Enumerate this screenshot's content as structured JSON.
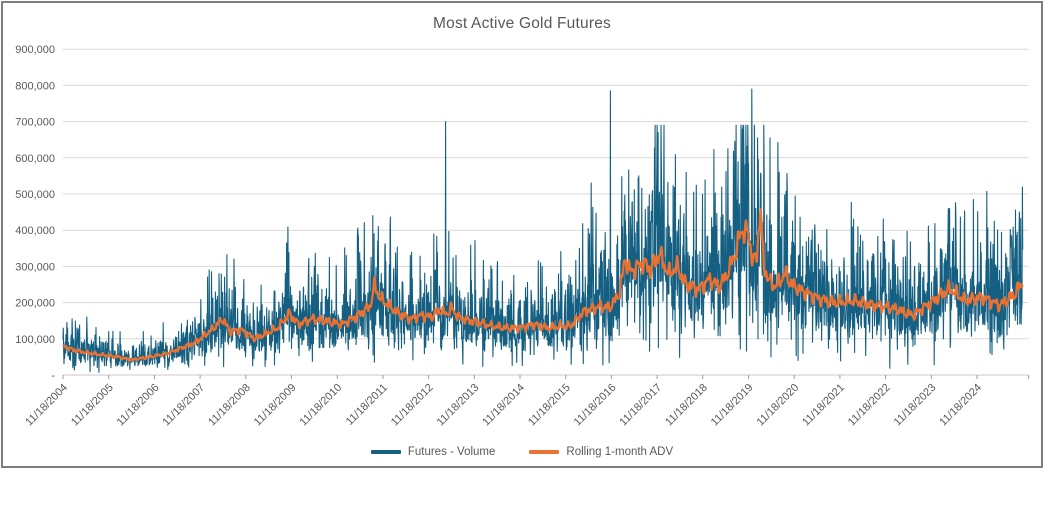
{
  "chart_data": {
    "type": "line",
    "title": "Most Active Gold Futures",
    "y_axis": {
      "min": 0,
      "max": 900000,
      "step": 100000,
      "tick_labels": [
        "900,000",
        "800,000",
        "700,000",
        "600,000",
        "500,000",
        "400,000",
        "300,000",
        "200,000",
        "100,000",
        "-"
      ],
      "grid": true
    },
    "x_axis": {
      "tick_labels": [
        "11/18/2004",
        "11/18/2005",
        "11/18/2006",
        "11/18/2007",
        "11/18/2008",
        "11/18/2009",
        "11/18/2010",
        "11/18/2011",
        "11/18/2012",
        "11/18/2013",
        "11/18/2014",
        "11/18/2015",
        "11/18/2016",
        "11/18/2017",
        "11/18/2018",
        "11/18/2019",
        "11/18/2020",
        "11/18/2021",
        "11/18/2022",
        "11/18/2023",
        "11/18/2024"
      ],
      "years_span": 21.0,
      "label_rotation_deg": -45
    },
    "legend": [
      {
        "name": "Futures - Volume",
        "color": "#156082"
      },
      {
        "name": "Rolling 1-month ADV",
        "color": "#E97132"
      }
    ],
    "series": [
      {
        "name": "Futures - Volume",
        "color": "#156082",
        "description": "daily traded volume, noisy band around the rolling ADV",
        "spikes_t_value": [
          [
            0.1,
            130000
          ],
          [
            1.0,
            120000
          ],
          [
            3.2,
            290000
          ],
          [
            3.74,
            320000
          ],
          [
            4.9,
            365000
          ],
          [
            5.5,
            300000
          ],
          [
            6.2,
            330000
          ],
          [
            6.78,
            440000
          ],
          [
            6.9,
            410000
          ],
          [
            7.6,
            330000
          ],
          [
            8.37,
            700000
          ],
          [
            8.6,
            330000
          ],
          [
            9.5,
            295000
          ],
          [
            10.45,
            310000
          ],
          [
            11.3,
            350000
          ],
          [
            11.56,
            530000
          ],
          [
            11.98,
            785000
          ],
          [
            12.6,
            550000
          ],
          [
            13.05,
            505000
          ],
          [
            13.8,
            505000
          ],
          [
            14.55,
            625000
          ],
          [
            14.7,
            645000
          ],
          [
            14.9,
            600000
          ],
          [
            15.07,
            790000
          ],
          [
            15.2,
            655000
          ],
          [
            15.67,
            560000
          ],
          [
            16.45,
            415000
          ],
          [
            17.3,
            430000
          ],
          [
            17.5,
            370000
          ],
          [
            18.15,
            310000
          ],
          [
            19.37,
            460000
          ],
          [
            20.38,
            425000
          ],
          [
            20.93,
            450000
          ]
        ]
      },
      {
        "name": "Rolling 1-month ADV",
        "color": "#E97132",
        "anchors_t_value": [
          [
            0,
            80000
          ],
          [
            0.25,
            68000
          ],
          [
            0.6,
            60000
          ],
          [
            0.9,
            55000
          ],
          [
            1.2,
            50000
          ],
          [
            1.5,
            42000
          ],
          [
            1.9,
            50000
          ],
          [
            2.3,
            60000
          ],
          [
            2.6,
            75000
          ],
          [
            2.9,
            90000
          ],
          [
            3.1,
            110000
          ],
          [
            3.3,
            130000
          ],
          [
            3.5,
            155000
          ],
          [
            3.65,
            120000
          ],
          [
            3.9,
            125000
          ],
          [
            4.2,
            100000
          ],
          [
            4.45,
            115000
          ],
          [
            4.7,
            130000
          ],
          [
            4.95,
            170000
          ],
          [
            5.15,
            140000
          ],
          [
            5.45,
            155000
          ],
          [
            5.7,
            150000
          ],
          [
            6.1,
            140000
          ],
          [
            6.4,
            160000
          ],
          [
            6.72,
            190000
          ],
          [
            6.82,
            250000
          ],
          [
            6.92,
            215000
          ],
          [
            7.1,
            195000
          ],
          [
            7.35,
            170000
          ],
          [
            7.6,
            155000
          ],
          [
            7.85,
            165000
          ],
          [
            8.05,
            160000
          ],
          [
            8.25,
            180000
          ],
          [
            8.38,
            168000
          ],
          [
            8.5,
            185000
          ],
          [
            8.65,
            160000
          ],
          [
            8.9,
            150000
          ],
          [
            9.1,
            145000
          ],
          [
            9.4,
            135000
          ],
          [
            9.7,
            130000
          ],
          [
            10,
            130000
          ],
          [
            10.3,
            140000
          ],
          [
            10.6,
            130000
          ],
          [
            10.9,
            135000
          ],
          [
            11.1,
            135000
          ],
          [
            11.4,
            175000
          ],
          [
            11.75,
            190000
          ],
          [
            11.95,
            185000
          ],
          [
            12.1,
            210000
          ],
          [
            12.18,
            230000
          ],
          [
            12.3,
            320000
          ],
          [
            12.42,
            285000
          ],
          [
            12.7,
            310000
          ],
          [
            12.85,
            290000
          ],
          [
            13.05,
            335000
          ],
          [
            13.25,
            280000
          ],
          [
            13.45,
            300000
          ],
          [
            13.6,
            255000
          ],
          [
            13.9,
            235000
          ],
          [
            14.15,
            265000
          ],
          [
            14.35,
            245000
          ],
          [
            14.5,
            270000
          ],
          [
            14.7,
            330000
          ],
          [
            14.85,
            400000
          ],
          [
            15,
            390000
          ],
          [
            15.1,
            310000
          ],
          [
            15.18,
            330000
          ],
          [
            15.22,
            395000
          ],
          [
            15.26,
            470000
          ],
          [
            15.3,
            360000
          ],
          [
            15.34,
            300000
          ],
          [
            15.45,
            260000
          ],
          [
            15.6,
            245000
          ],
          [
            15.8,
            280000
          ],
          [
            15.95,
            250000
          ],
          [
            16.2,
            230000
          ],
          [
            16.56,
            210000
          ],
          [
            16.9,
            200000
          ],
          [
            17.3,
            205000
          ],
          [
            17.66,
            195000
          ],
          [
            18.15,
            185000
          ],
          [
            18.6,
            165000
          ],
          [
            19.1,
            210000
          ],
          [
            19.4,
            240000
          ],
          [
            19.74,
            205000
          ],
          [
            20.1,
            215000
          ],
          [
            20.5,
            193000
          ],
          [
            20.8,
            220000
          ],
          [
            21,
            255000
          ]
        ]
      }
    ],
    "render": {
      "samples_per_year": 140,
      "volume_noise_sigma": 0.38,
      "seed": 42
    },
    "colors": {
      "grid": "#d9d9d9",
      "axis": "#c9c9c9",
      "tick": "#9e9e9e",
      "label": "#595959"
    }
  }
}
